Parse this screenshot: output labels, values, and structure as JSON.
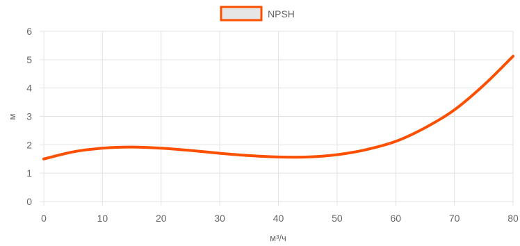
{
  "chart_data": {
    "type": "line",
    "xlabel": "м³/ч",
    "ylabel": "м",
    "xlim": [
      0,
      80
    ],
    "ylim": [
      0,
      6
    ],
    "xticks": [
      0,
      10,
      20,
      30,
      40,
      50,
      60,
      70,
      80
    ],
    "yticks": [
      0,
      1,
      2,
      3,
      4,
      5,
      6
    ],
    "grid": true,
    "legend": "top-center",
    "series": [
      {
        "name": "NPSH",
        "color": "#fc5000",
        "legend_fill": "#e6e6e6",
        "x": [
          0,
          5,
          10,
          15,
          20,
          25,
          30,
          35,
          40,
          45,
          50,
          55,
          60,
          65,
          70,
          75,
          80
        ],
        "y": [
          1.5,
          1.75,
          1.88,
          1.92,
          1.88,
          1.8,
          1.7,
          1.62,
          1.57,
          1.57,
          1.65,
          1.83,
          2.12,
          2.6,
          3.23,
          4.1,
          5.12
        ]
      }
    ]
  }
}
